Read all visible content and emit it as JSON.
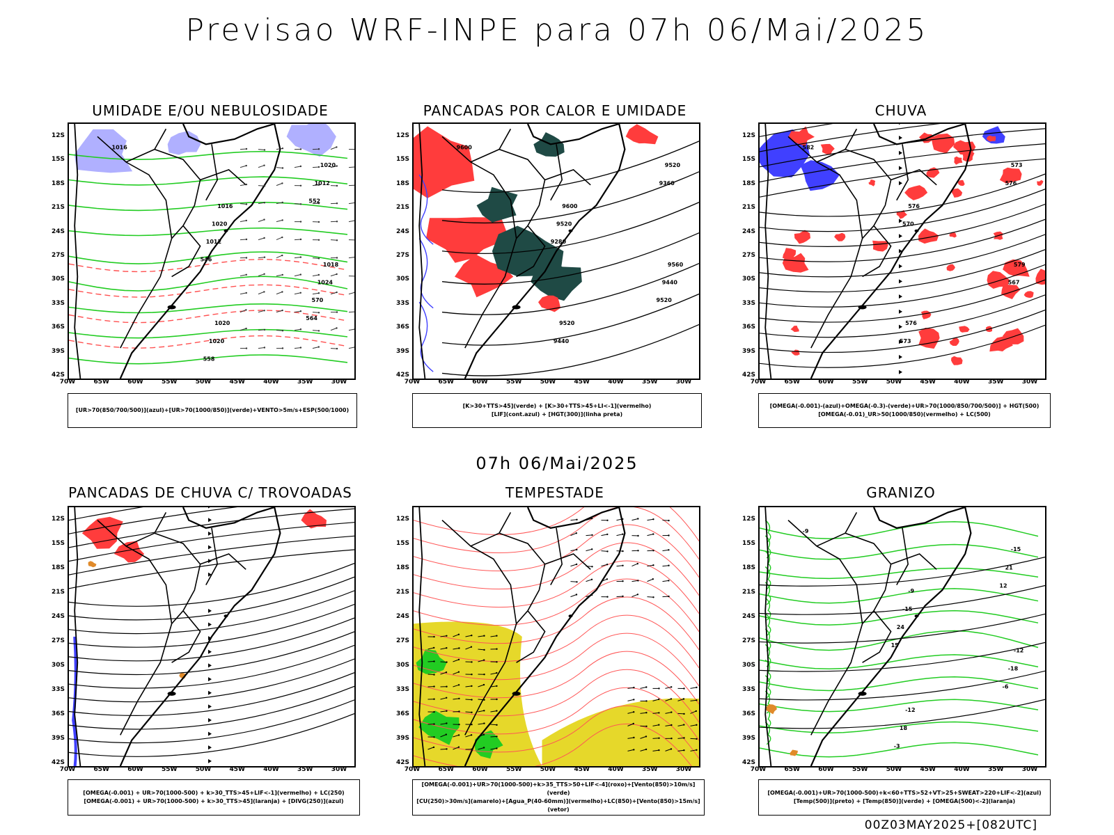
{
  "header": {
    "title": "Previsao WRF-INPE  para 07h 06/Mai/2025"
  },
  "mid_title": "07h 06/Mai/2025",
  "footer": "00Z03MAY2025+[082UTC]",
  "axes": {
    "lat_labels": [
      "12S",
      "15S",
      "18S",
      "21S",
      "24S",
      "27S",
      "30S",
      "33S",
      "36S",
      "39S",
      "42S"
    ],
    "lon_labels": [
      "70W",
      "65W",
      "60W",
      "55W",
      "50W",
      "45W",
      "40W",
      "35W",
      "30W"
    ]
  },
  "colors": {
    "blue": "#4040ff",
    "green": "#22cc22",
    "red": "#ff3c3c",
    "dark_teal": "#1f4a45",
    "lavender": "#b0b0ff",
    "yellow": "#e6d82a",
    "orange": "#e08a2a"
  },
  "panels": [
    {
      "id": "umidade",
      "title": "UMIDADE E/OU NEBULOSIDADE",
      "legend": [
        "[UR>70(850/700/500)](azul)+[UR>70(1000/850)](verde)+VENTO>5m/s+ESP(500/1000)"
      ],
      "contour_labels": [
        "1016",
        "1016",
        "1018",
        "1020",
        "1020",
        "1020",
        "1024",
        "1020",
        "1012",
        "1012",
        "570",
        "558",
        "552",
        "546",
        "564"
      ]
    },
    {
      "id": "pancadas_calor",
      "title": "PANCADAS POR CALOR E UMIDADE",
      "legend": [
        "[K>30+TTS>45](verde) + [K>30+TTS>45+LI<-1](vermelho)",
        "[LIF](cont.azul) + [HGT(300)](linha preta)"
      ],
      "contour_labels": [
        "9600",
        "9600",
        "9560",
        "9520",
        "9520",
        "9520",
        "9440",
        "9440",
        "9360",
        "9280",
        "9520"
      ]
    },
    {
      "id": "chuva",
      "title": "CHUVA",
      "legend": [
        "[OMEGA(-0.001)-(azul)+OMEGA(-0.3)-(verde)+UR>70(1000/850/700/500)] + HGT(500)",
        "[OMEGA(-0.01)_UR>50(1000/850)(vermelho) + LC(500)"
      ],
      "contour_labels": [
        "582",
        "576",
        "579",
        "576",
        "573",
        "570",
        "567",
        "573",
        "576"
      ]
    },
    {
      "id": "pancadas_trovoadas",
      "title": "PANCADAS DE CHUVA C/ TROVOADAS",
      "legend": [
        "[OMEGA(-0.001) + UR>70(1000-500) + k>30_TTS>45+LIF<-1](vermelho) + LC(250)",
        "[OMEGA(-0.001) + UR>70(1000-500) + k>30_TTS>45](laranja) + [DIVG(250)](azul)"
      ],
      "contour_labels": []
    },
    {
      "id": "tempestade",
      "title": "TEMPESTADE",
      "legend": [
        "[OMEGA(-0.001)+UR>70(1000-500)+k>35_TTS>50+LIF<-4](roxo)+[Vento(850)>10m/s](verde)",
        "[CU(250)>30m/s](amarelo)+[Agua_P(40-60mm)](vermelho)+LC(850)+[Vento(850)>15m/s](vetor)"
      ],
      "contour_labels": []
    },
    {
      "id": "granizo",
      "title": "GRANIZO",
      "legend": [
        "[OMEGA(-0.001)+UR>70(1000-500)+k<60+TTS>52+VT>25+SWEAT>220+LIF<-2](azul)",
        "[Temp(500)](preto) + [Temp(850)](verde) + [OMEGA(500)<-2](laranja)"
      ],
      "contour_labels": [
        "-9",
        "-9",
        "-12",
        "-12",
        "-15",
        "-15",
        "-18",
        "18",
        "21",
        "24",
        "-6",
        "-3",
        "12",
        "15"
      ]
    }
  ]
}
